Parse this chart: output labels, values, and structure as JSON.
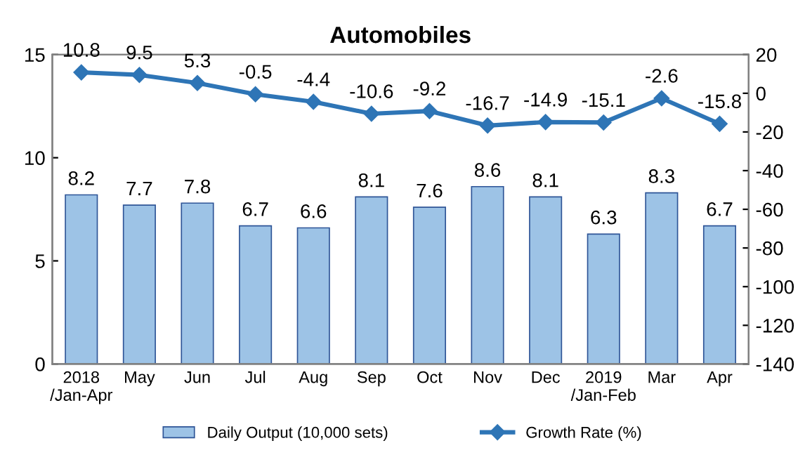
{
  "chart_data": {
    "type": "bar",
    "title": "Automobiles",
    "categories": [
      "2018\n/Jan-Apr",
      "May",
      "Jun",
      "Jul",
      "Aug",
      "Sep",
      "Oct",
      "Nov",
      "Dec",
      "2019\n/Jan-Feb",
      "Mar",
      "Apr"
    ],
    "series": [
      {
        "name": "Daily Output (10,000 sets)",
        "color": "#9dc3e6",
        "values": [
          8.2,
          7.7,
          7.8,
          6.7,
          6.6,
          8.1,
          7.6,
          8.6,
          8.1,
          6.3,
          8.3,
          6.7
        ]
      },
      {
        "name": "Growth Rate (%)",
        "type": "line",
        "axis": "y2",
        "color": "#2e75b6",
        "marker": "diamond",
        "values": [
          10.8,
          9.5,
          5.3,
          -0.5,
          -4.4,
          -10.6,
          -9.2,
          -16.7,
          -14.9,
          -15.1,
          -2.6,
          -15.8
        ]
      }
    ],
    "ylim": [
      0,
      15
    ],
    "yticks": [
      0,
      5,
      10,
      15
    ],
    "y2lim": [
      -140,
      20
    ],
    "y2ticks": [
      -140,
      -120,
      -100,
      -80,
      -60,
      -40,
      -20,
      0,
      20
    ],
    "data_labels": true,
    "legend": "bottom",
    "grid": false
  }
}
